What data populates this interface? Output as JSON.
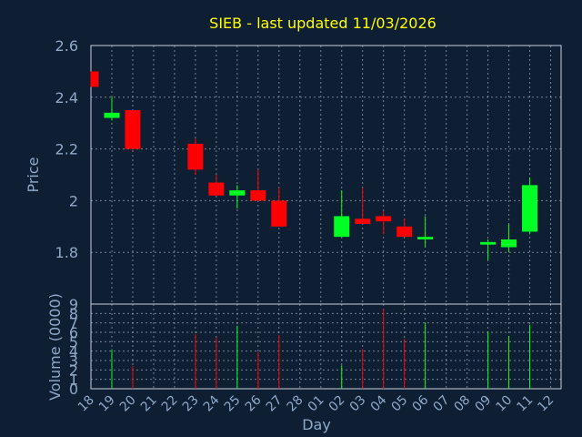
{
  "chart_data": {
    "type": "candlestick",
    "title": "SIEB - last updated 11/03/2026",
    "xlabel": "Day",
    "ylabel": "Price",
    "volume_label": "Volume (0000)",
    "grid": true,
    "x_ticks": [
      "18",
      "19",
      "20",
      "21",
      "22",
      "23",
      "24",
      "25",
      "26",
      "27",
      "28",
      "01",
      "02",
      "03",
      "04",
      "05",
      "06",
      "07",
      "08",
      "09",
      "10",
      "11",
      "12"
    ],
    "price_ylim": [
      1.6,
      2.6
    ],
    "price_ticks": [
      "1.8",
      "2",
      "2.2",
      "2.4",
      "2.6"
    ],
    "volume_ylim": [
      0,
      9
    ],
    "volume_ticks": [
      "0",
      "1",
      "2",
      "3",
      "4",
      "5",
      "6",
      "7",
      "8",
      "9"
    ],
    "up_color": "#00ff22",
    "down_color": "#ff0000",
    "candles": [
      {
        "day": "18",
        "open": 2.5,
        "high": 2.5,
        "low": 2.44,
        "close": 2.44,
        "volume": 0
      },
      {
        "day": "19",
        "open": 2.32,
        "high": 2.4,
        "low": 2.31,
        "close": 2.34,
        "volume": 4.2
      },
      {
        "day": "20",
        "open": 2.35,
        "high": 2.35,
        "low": 2.2,
        "close": 2.2,
        "volume": 2.4
      },
      {
        "day": "23",
        "open": 2.22,
        "high": 2.24,
        "low": 2.1,
        "close": 2.12,
        "volume": 5.8
      },
      {
        "day": "24",
        "open": 2.07,
        "high": 2.1,
        "low": 2.02,
        "close": 2.02,
        "volume": 5.4
      },
      {
        "day": "25",
        "open": 2.02,
        "high": 2.06,
        "low": 1.97,
        "close": 2.04,
        "volume": 6.7
      },
      {
        "day": "26",
        "open": 2.04,
        "high": 2.12,
        "low": 2.0,
        "close": 2.0,
        "volume": 3.9
      },
      {
        "day": "27",
        "open": 2.0,
        "high": 2.05,
        "low": 1.9,
        "close": 1.9,
        "volume": 5.7
      },
      {
        "day": "02",
        "open": 1.86,
        "high": 2.04,
        "low": 1.86,
        "close": 1.94,
        "volume": 2.5
      },
      {
        "day": "03",
        "open": 1.93,
        "high": 2.05,
        "low": 1.91,
        "close": 1.91,
        "volume": 4.2
      },
      {
        "day": "04",
        "open": 1.94,
        "high": 1.96,
        "low": 1.87,
        "close": 1.92,
        "volume": 8.5
      },
      {
        "day": "05",
        "open": 1.9,
        "high": 1.93,
        "low": 1.86,
        "close": 1.86,
        "volume": 5.3
      },
      {
        "day": "06",
        "open": 1.85,
        "high": 1.94,
        "low": 1.82,
        "close": 1.86,
        "volume": 7.0
      },
      {
        "day": "09",
        "open": 1.83,
        "high": 1.85,
        "low": 1.77,
        "close": 1.84,
        "volume": 6.1
      },
      {
        "day": "10",
        "open": 1.82,
        "high": 1.91,
        "low": 1.8,
        "close": 1.85,
        "volume": 5.6
      },
      {
        "day": "11",
        "open": 1.88,
        "high": 2.09,
        "low": 1.87,
        "close": 2.06,
        "volume": 6.8
      }
    ]
  }
}
